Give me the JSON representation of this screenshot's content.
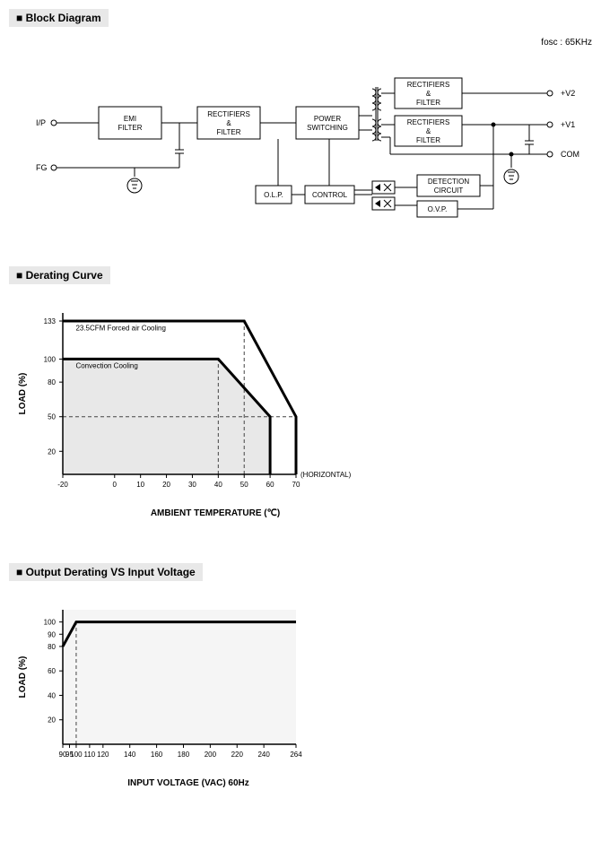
{
  "top_note": "fosc : 65KHz",
  "sections": {
    "block": "Block Diagram",
    "derating": "Derating Curve",
    "output_derating": "Output Derating VS Input Voltage"
  },
  "block_diagram": {
    "inputs": {
      "ip": "I/P",
      "fg": "FG"
    },
    "outputs": {
      "v2": "+V2",
      "v1": "+V1",
      "com": "COM"
    },
    "boxes": {
      "emi": [
        "EMI",
        "FILTER"
      ],
      "rect1": [
        "RECTIFIERS",
        "&",
        "FILTER"
      ],
      "power": [
        "POWER",
        "SWITCHING"
      ],
      "rect2_top": [
        "RECTIFIERS",
        "&",
        "FILTER"
      ],
      "rect2_bot": [
        "RECTIFIERS",
        "&",
        "FILTER"
      ],
      "olp": "O.L.P.",
      "control": "CONTROL",
      "detection": [
        "DETECTION",
        "CIRCUIT"
      ],
      "ovp": "O.V.P."
    },
    "box_stroke": "#000000",
    "box_fill": "#ffffff",
    "wire_color": "#000000",
    "font_size": 8
  },
  "derating_chart": {
    "type": "line-area",
    "xlabel": "AMBIENT TEMPERATURE (℃)",
    "ylabel": "LOAD (%)",
    "side_label": "(HORIZONTAL)",
    "xlim": [
      -20,
      70
    ],
    "ylim": [
      0,
      140
    ],
    "xticks": [
      -20,
      0,
      10,
      20,
      30,
      40,
      50,
      60,
      70
    ],
    "yticks": [
      20,
      50,
      80,
      100,
      133
    ],
    "series": [
      {
        "label": "23.5CFM Forced air Cooling",
        "label_pos": {
          "x": -15,
          "y": 125
        },
        "points": [
          [
            -20,
            133
          ],
          [
            50,
            133
          ],
          [
            70,
            50
          ],
          [
            70,
            0
          ]
        ],
        "fill": null,
        "stroke_width": 3
      },
      {
        "label": "Convection Cooling",
        "label_pos": {
          "x": -15,
          "y": 92
        },
        "points": [
          [
            -20,
            100
          ],
          [
            40,
            100
          ],
          [
            60,
            50
          ],
          [
            60,
            0
          ]
        ],
        "fill": "#e8e8e8",
        "stroke_width": 3
      }
    ],
    "dashed_refs": [
      {
        "from": [
          -20,
          50
        ],
        "to": [
          70,
          50
        ]
      },
      {
        "from": [
          40,
          0
        ],
        "to": [
          40,
          100
        ]
      },
      {
        "from": [
          50,
          0
        ],
        "to": [
          50,
          133
        ]
      }
    ],
    "colors": {
      "axis": "#000000",
      "tick_font_size": 8,
      "label_font_size": 10,
      "dash_color": "#444444"
    }
  },
  "voltage_chart": {
    "type": "line",
    "xlabel": "INPUT VOLTAGE (VAC) 60Hz",
    "ylabel": "LOAD (%)",
    "xlim": [
      90,
      264
    ],
    "ylim": [
      0,
      110
    ],
    "xticks": [
      90,
      95,
      100,
      110,
      120,
      140,
      160,
      180,
      200,
      220,
      240,
      264
    ],
    "yticks": [
      20,
      40,
      60,
      80,
      90,
      100
    ],
    "series": [
      {
        "points": [
          [
            90,
            80
          ],
          [
            100,
            100
          ],
          [
            264,
            100
          ]
        ],
        "stroke_width": 3
      }
    ],
    "dashed_refs": [
      {
        "from": [
          100,
          0
        ],
        "to": [
          100,
          100
        ]
      }
    ],
    "colors": {
      "axis": "#000000",
      "tick_font_size": 8,
      "label_font_size": 10,
      "dash_color": "#444444",
      "fill": "#f5f5f5"
    }
  }
}
